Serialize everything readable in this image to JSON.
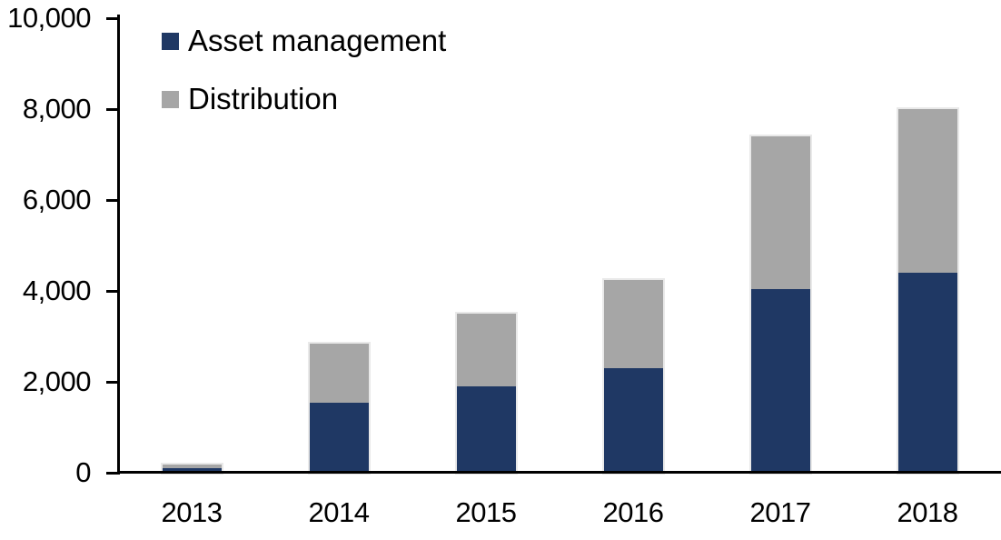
{
  "chart_data": {
    "type": "bar",
    "stacked": true,
    "title": "",
    "xlabel": "",
    "ylabel": "",
    "categories": [
      "2013",
      "2014",
      "2015",
      "2016",
      "2017",
      "2018"
    ],
    "series": [
      {
        "name": "Asset management",
        "color": "#1F3864",
        "values": [
          100,
          1550,
          1900,
          2300,
          4050,
          4400
        ]
      },
      {
        "name": "Distribution",
        "color": "#A6A6A6",
        "values": [
          80,
          1300,
          1600,
          1950,
          3350,
          3600
        ]
      }
    ],
    "totals": [
      180,
      2850,
      3500,
      4250,
      7400,
      8000
    ],
    "ylim": [
      0,
      10000
    ],
    "ytick_interval": 2000,
    "ytick_labels": [
      "0",
      "2,000",
      "4,000",
      "6,000",
      "8,000",
      "10,000"
    ],
    "grid": false,
    "legend_position": "top-left",
    "axis_color": "#000000",
    "bar_edge_color": "#e9e9e9",
    "background_color": "#ffffff"
  }
}
